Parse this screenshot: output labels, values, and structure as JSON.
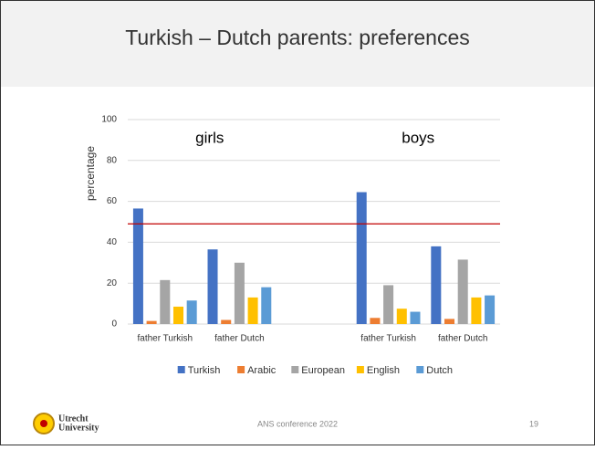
{
  "slide": {
    "title": "Turkish – Dutch parents: preferences",
    "footer": "ANS conference 2022",
    "page_number": "19",
    "logo": [
      "Utrecht",
      "University"
    ]
  },
  "chart_data": {
    "type": "bar",
    "ylabel": "percentage",
    "annotations": [
      "girls",
      "boys"
    ],
    "categories": [
      "father Turkish",
      "father Dutch",
      null,
      "father Turkish",
      "father Dutch"
    ],
    "series": [
      {
        "name": "Turkish",
        "color": "#4472c4",
        "values": [
          56.5,
          36.5,
          null,
          64.5,
          38
        ]
      },
      {
        "name": "Arabic",
        "color": "#ed7d31",
        "values": [
          1.5,
          2,
          null,
          3,
          2.5
        ]
      },
      {
        "name": "European",
        "color": "#a5a5a5",
        "values": [
          21.5,
          30,
          null,
          19,
          31.5
        ]
      },
      {
        "name": "English",
        "color": "#ffc000",
        "values": [
          8.5,
          13,
          null,
          7.5,
          13
        ]
      },
      {
        "name": "Dutch",
        "color": "#5b9bd5",
        "values": [
          11.5,
          18,
          null,
          6,
          14
        ]
      }
    ],
    "reference_line": {
      "value": 49,
      "color": "#c00000"
    },
    "ylim": [
      0,
      100
    ],
    "yticks": [
      0,
      20,
      40,
      60,
      80,
      100
    ],
    "grid": true,
    "legend": "bottom"
  }
}
